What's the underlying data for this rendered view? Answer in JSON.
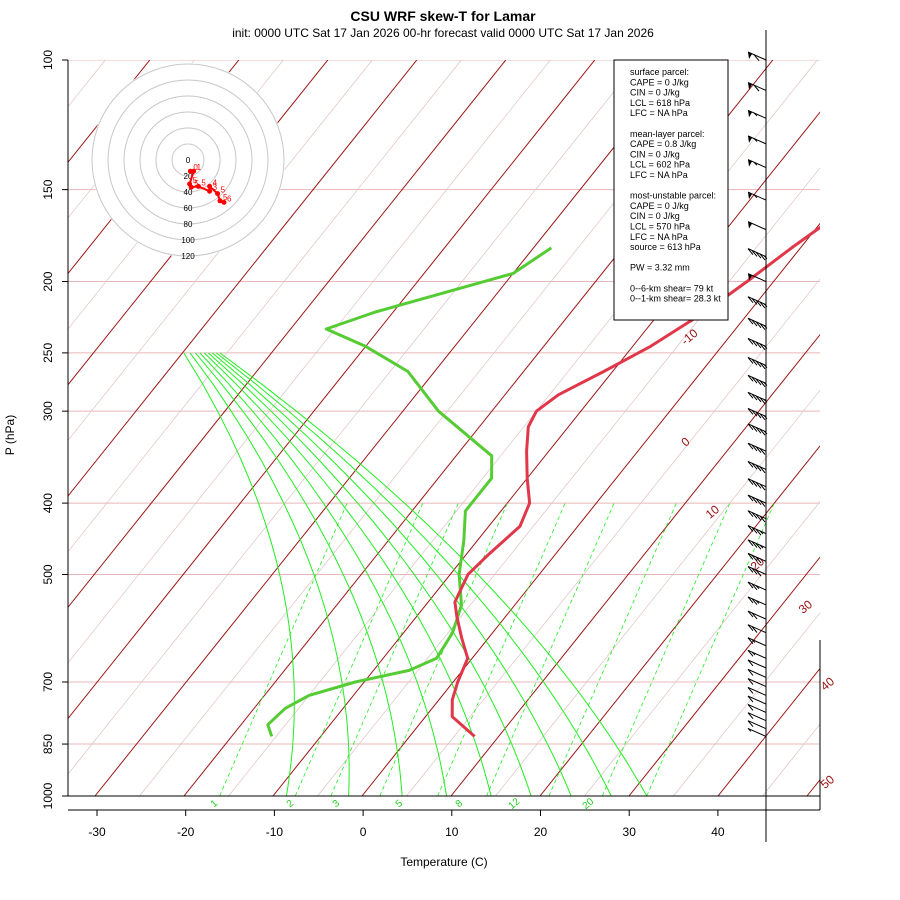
{
  "header": {
    "title": "CSU WRF skew-T for Lamar",
    "subtitle": "init: 0000 UTC Sat 17 Jan 2026    00-hr forecast valid 0000 UTC Sat 17 Jan 2026"
  },
  "info_box": {
    "lines": [
      "surface parcel:",
      "CAPE = 0 J/kg",
      "CIN = 0 J/kg",
      "LCL = 618 hPa",
      "LFC = NA hPa",
      "",
      "mean-layer parcel:",
      "CAPE = 0.8 J/kg",
      "CIN = 0 J/kg",
      "LCL = 602 hPa",
      "LFC = NA hPa",
      "",
      "most-unstable parcel:",
      "CAPE = 0 J/kg",
      "CIN = 0 J/kg",
      "LCL = 570 hPa",
      "LFC = NA hPa",
      "source = 613 hPa",
      "",
      "PW =  3.32 mm",
      "",
      "0--6-km shear= 79 kt",
      "0--1-km shear= 28.3 kt"
    ]
  },
  "colors": {
    "temperature": "#e0384a",
    "dewpoint": "#55cc33",
    "isotherm": "#9a1010",
    "isobar": "#e8b8b8",
    "mixing_ratio": "#22ee22",
    "hodograph": "#ff0000"
  },
  "chart_data": {
    "type": "skew-t",
    "xlabel": "Temperature (C)",
    "ylabel": "P (hPa)",
    "x_ticks": [
      -30,
      -20,
      -10,
      0,
      10,
      20,
      30,
      40
    ],
    "p_ticks": [
      100,
      150,
      200,
      250,
      300,
      400,
      500,
      700,
      850,
      1000
    ],
    "isobars": [
      100,
      150,
      200,
      250,
      300,
      400,
      500,
      700,
      850,
      1000
    ],
    "isotherm_labels": [
      "-10",
      "0",
      "10",
      "20",
      "30",
      "40",
      "50"
    ],
    "mixing_ratio_labels": [
      "1",
      "2",
      "3",
      "5",
      "8",
      "12",
      "20"
    ],
    "temperature_profile": [
      {
        "p": 830,
        "t": 7.3
      },
      {
        "p": 780,
        "t": 3.0
      },
      {
        "p": 740,
        "t": 1.5
      },
      {
        "p": 700,
        "t": 0.5
      },
      {
        "p": 650,
        "t": -0.5
      },
      {
        "p": 610,
        "t": -3.0
      },
      {
        "p": 570,
        "t": -5.5
      },
      {
        "p": 545,
        "t": -7.0
      },
      {
        "p": 500,
        "t": -8.0
      },
      {
        "p": 470,
        "t": -7.5
      },
      {
        "p": 430,
        "t": -6.5
      },
      {
        "p": 400,
        "t": -7.5
      },
      {
        "p": 370,
        "t": -10.0
      },
      {
        "p": 340,
        "t": -12.5
      },
      {
        "p": 315,
        "t": -14.5
      },
      {
        "p": 300,
        "t": -15.0
      },
      {
        "p": 285,
        "t": -14.0
      },
      {
        "p": 265,
        "t": -11.0
      },
      {
        "p": 245,
        "t": -8.0
      },
      {
        "p": 220,
        "t": -5.0
      },
      {
        "p": 200,
        "t": -3.0
      },
      {
        "p": 180,
        "t": -1.0
      },
      {
        "p": 160,
        "t": 1.5
      },
      {
        "p": 150,
        "t": 2.0
      },
      {
        "p": 135,
        "t": 1.0
      },
      {
        "p": 120,
        "t": -1.0
      },
      {
        "p": 110,
        "t": -2.0
      }
    ],
    "dewpoint_profile": [
      {
        "p": 830,
        "t": -15.5
      },
      {
        "p": 800,
        "t": -17.0
      },
      {
        "p": 760,
        "t": -16.5
      },
      {
        "p": 730,
        "t": -15.0
      },
      {
        "p": 700,
        "t": -11.0
      },
      {
        "p": 675,
        "t": -6.0
      },
      {
        "p": 650,
        "t": -4.0
      },
      {
        "p": 600,
        "t": -4.5
      },
      {
        "p": 550,
        "t": -6.0
      },
      {
        "p": 500,
        "t": -9.0
      },
      {
        "p": 450,
        "t": -11.5
      },
      {
        "p": 410,
        "t": -14.0
      },
      {
        "p": 370,
        "t": -14.0
      },
      {
        "p": 345,
        "t": -16.0
      },
      {
        "p": 300,
        "t": -26.0
      },
      {
        "p": 265,
        "t": -33.0
      },
      {
        "p": 245,
        "t": -40.0
      },
      {
        "p": 232,
        "t": -46.0
      },
      {
        "p": 220,
        "t": -42.0
      },
      {
        "p": 195,
        "t": -30.0
      },
      {
        "p": 180,
        "t": -28.0
      }
    ],
    "wind_barbs": [
      {
        "p": 100,
        "speed": 60,
        "dir": 250
      },
      {
        "p": 110,
        "speed": 60,
        "dir": 250
      },
      {
        "p": 120,
        "speed": 55,
        "dir": 250
      },
      {
        "p": 130,
        "speed": 55,
        "dir": 250
      },
      {
        "p": 140,
        "speed": 55,
        "dir": 250
      },
      {
        "p": 155,
        "speed": 55,
        "dir": 250
      },
      {
        "p": 170,
        "speed": 50,
        "dir": 250
      },
      {
        "p": 185,
        "speed": 45,
        "dir": 250
      },
      {
        "p": 200,
        "speed": 50,
        "dir": 250
      },
      {
        "p": 215,
        "speed": 45,
        "dir": 250
      },
      {
        "p": 230,
        "speed": 45,
        "dir": 250
      },
      {
        "p": 245,
        "speed": 45,
        "dir": 250
      },
      {
        "p": 260,
        "speed": 45,
        "dir": 250
      },
      {
        "p": 275,
        "speed": 45,
        "dir": 250
      },
      {
        "p": 290,
        "speed": 45,
        "dir": 250
      },
      {
        "p": 305,
        "speed": 45,
        "dir": 250
      },
      {
        "p": 320,
        "speed": 45,
        "dir": 250
      },
      {
        "p": 340,
        "speed": 40,
        "dir": 250
      },
      {
        "p": 360,
        "speed": 40,
        "dir": 250
      },
      {
        "p": 380,
        "speed": 40,
        "dir": 250
      },
      {
        "p": 400,
        "speed": 40,
        "dir": 250
      },
      {
        "p": 420,
        "speed": 40,
        "dir": 250
      },
      {
        "p": 440,
        "speed": 35,
        "dir": 255
      },
      {
        "p": 460,
        "speed": 35,
        "dir": 255
      },
      {
        "p": 480,
        "speed": 30,
        "dir": 255
      },
      {
        "p": 500,
        "speed": 30,
        "dir": 255
      },
      {
        "p": 525,
        "speed": 25,
        "dir": 260
      },
      {
        "p": 550,
        "speed": 25,
        "dir": 260
      },
      {
        "p": 575,
        "speed": 20,
        "dir": 260
      },
      {
        "p": 600,
        "speed": 20,
        "dir": 260
      },
      {
        "p": 625,
        "speed": 15,
        "dir": 270
      },
      {
        "p": 650,
        "speed": 15,
        "dir": 270
      },
      {
        "p": 670,
        "speed": 10,
        "dir": 280
      },
      {
        "p": 690,
        "speed": 10,
        "dir": 290
      },
      {
        "p": 710,
        "speed": 10,
        "dir": 300
      },
      {
        "p": 730,
        "speed": 10,
        "dir": 310
      },
      {
        "p": 750,
        "speed": 10,
        "dir": 320
      },
      {
        "p": 770,
        "speed": 10,
        "dir": 330
      },
      {
        "p": 790,
        "speed": 10,
        "dir": 340
      },
      {
        "p": 810,
        "speed": 10,
        "dir": 350
      },
      {
        "p": 830,
        "speed": 5,
        "dir": 0
      }
    ],
    "hodograph": {
      "ring_labels": [
        "0",
        "20",
        "40",
        "60",
        "80",
        "100",
        "120"
      ],
      "points": [
        {
          "label": "0",
          "u": 3,
          "v": 14
        },
        {
          "label": "1",
          "u": 7,
          "v": 14
        },
        {
          "label": "5",
          "u": 2,
          "v": 30
        },
        {
          "label": "5",
          "u": 4,
          "v": 34
        },
        {
          "label": "5",
          "u": 13,
          "v": 33
        },
        {
          "label": "3",
          "u": 27,
          "v": 39
        },
        {
          "label": "4",
          "u": 27,
          "v": 33
        },
        {
          "label": "5",
          "u": 37,
          "v": 42
        },
        {
          "label": "5",
          "u": 40,
          "v": 51
        },
        {
          "label": "6",
          "u": 45,
          "v": 53
        }
      ]
    }
  }
}
